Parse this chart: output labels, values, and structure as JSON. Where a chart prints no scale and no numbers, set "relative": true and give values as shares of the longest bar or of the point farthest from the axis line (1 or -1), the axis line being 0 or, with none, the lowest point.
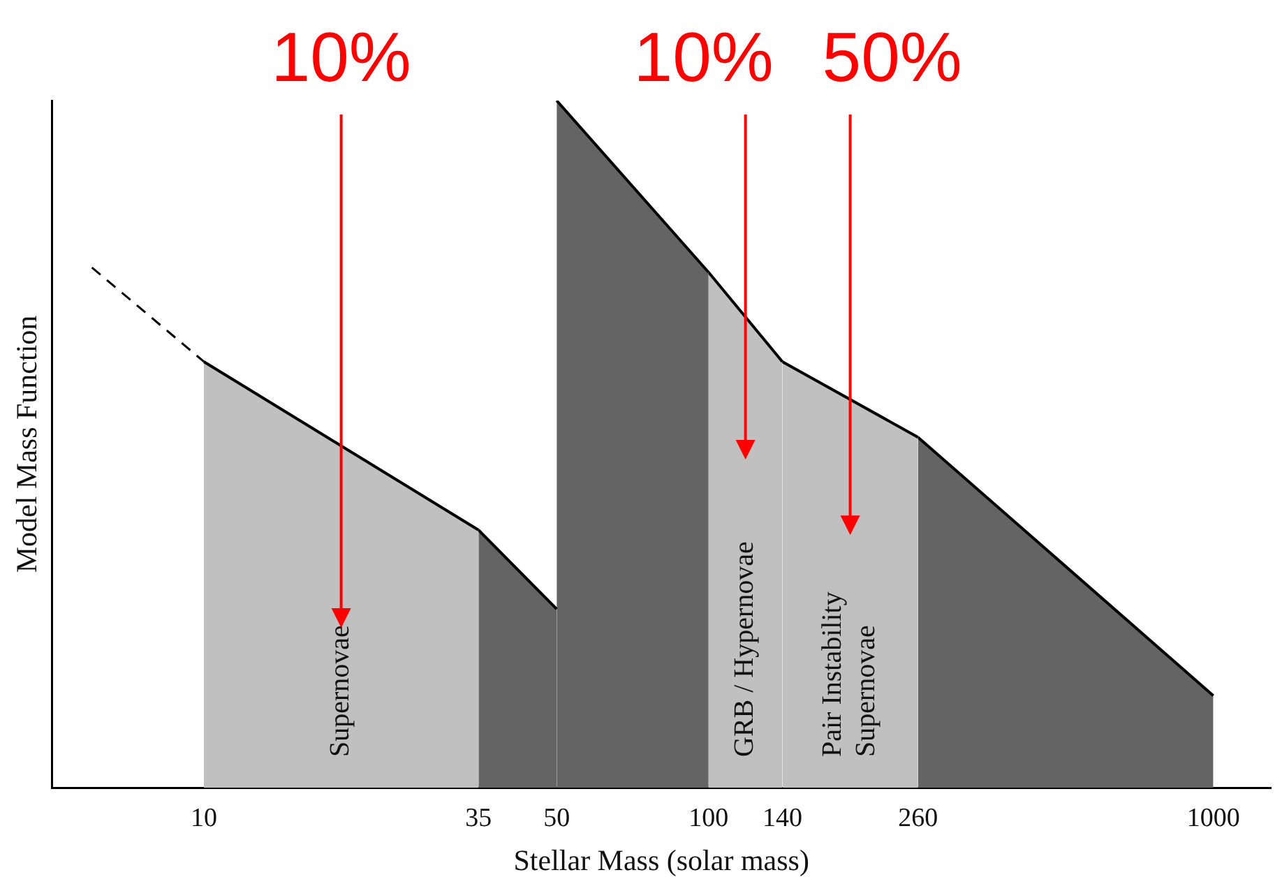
{
  "chart_data": {
    "type": "area",
    "relative": true,
    "log": "x",
    "xlabel": "Stellar Mass (solar mass)",
    "ylabel": "Model Mass Function",
    "xlim": [
      5,
      1300
    ],
    "xticks": [
      10,
      35,
      50,
      100,
      140,
      260,
      1000
    ],
    "tick_labels": "x",
    "legend": false,
    "series": [
      {
        "type": "line",
        "line_style": "dashed",
        "color": "#000000",
        "x": [
          6,
          10
        ],
        "values": [
          0.757,
          0.62
        ]
      },
      {
        "name": "Supernovae",
        "color": "#c0c0c0",
        "x": [
          10,
          35
        ],
        "values": [
          0.62,
          0.375
        ]
      },
      {
        "color": "#646464",
        "x": [
          35,
          50
        ],
        "values": [
          0.375,
          0.26
        ]
      },
      {
        "color": "#646464",
        "x": [
          50,
          100
        ],
        "values": [
          1,
          0.75
        ]
      },
      {
        "name": "GRB / Hypernovae",
        "color": "#c0c0c0",
        "x": [
          100,
          140
        ],
        "values": [
          0.75,
          0.62
        ]
      },
      {
        "name": "Pair Instability Supernovae",
        "color": "#c0c0c0",
        "x": [
          140,
          260
        ],
        "values": [
          0.62,
          0.51
        ]
      },
      {
        "color": "#646464",
        "x": [
          260,
          1000
        ],
        "values": [
          0.51,
          0.134
        ]
      }
    ],
    "annotations": [
      "10%",
      "10%",
      "50%"
    ]
  }
}
